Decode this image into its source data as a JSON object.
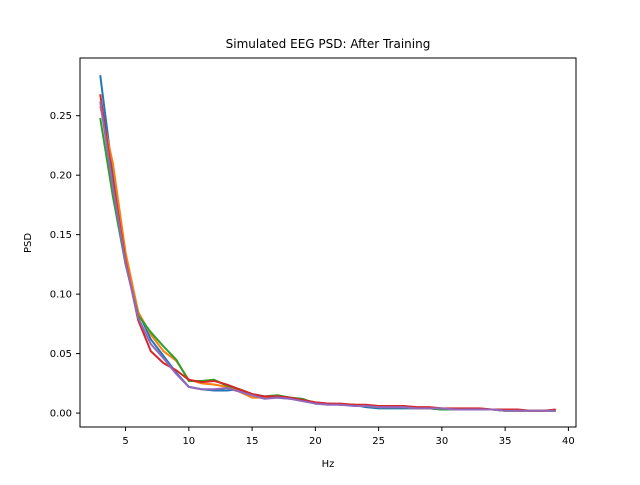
{
  "chart_data": {
    "type": "line",
    "title": "Simulated EEG PSD: After Training",
    "xlabel": "Hz",
    "ylabel": "PSD",
    "xlim": [
      1.4,
      40.6
    ],
    "ylim": [
      -0.0117,
      0.2985
    ],
    "xticks": [
      5,
      10,
      15,
      20,
      25,
      30,
      35,
      40
    ],
    "xtick_labels": [
      "5",
      "10",
      "15",
      "20",
      "25",
      "30",
      "35",
      "40"
    ],
    "yticks": [
      0.0,
      0.05,
      0.1,
      0.15,
      0.2,
      0.25
    ],
    "ytick_labels": [
      "0.00",
      "0.05",
      "0.10",
      "0.15",
      "0.20",
      "0.25"
    ],
    "grid": false,
    "legend": "none",
    "x": [
      3.0,
      4.0,
      5.0,
      6.0,
      7.0,
      8.0,
      9.0,
      10.0,
      11.0,
      12.0,
      13.0,
      14.0,
      15.0,
      16.0,
      17.0,
      18.0,
      19.0,
      20.0,
      21.0,
      22.0,
      23.0,
      24.0,
      25.0,
      26.0,
      27.0,
      28.0,
      29.0,
      30.0,
      31.0,
      32.0,
      33.0,
      34.0,
      35.0,
      36.0,
      37.0,
      38.0,
      39.0
    ],
    "series": [
      {
        "color": "#1f77b4",
        "values": [
          0.284,
          0.2,
          0.13,
          0.085,
          0.062,
          0.048,
          0.034,
          0.022,
          0.02,
          0.019,
          0.019,
          0.02,
          0.016,
          0.013,
          0.013,
          0.012,
          0.011,
          0.009,
          0.008,
          0.007,
          0.007,
          0.005,
          0.004,
          0.004,
          0.004,
          0.004,
          0.004,
          0.003,
          0.003,
          0.003,
          0.003,
          0.003,
          0.002,
          0.002,
          0.002,
          0.002,
          0.002
        ]
      },
      {
        "color": "#ff7f0e",
        "values": [
          0.258,
          0.21,
          0.135,
          0.085,
          0.066,
          0.052,
          0.044,
          0.028,
          0.025,
          0.024,
          0.022,
          0.018,
          0.013,
          0.013,
          0.014,
          0.013,
          0.011,
          0.008,
          0.008,
          0.007,
          0.007,
          0.006,
          0.005,
          0.005,
          0.005,
          0.004,
          0.004,
          0.004,
          0.003,
          0.003,
          0.003,
          0.003,
          0.002,
          0.002,
          0.002,
          0.002,
          0.002
        ]
      },
      {
        "color": "#2ca02c",
        "values": [
          0.248,
          0.182,
          0.125,
          0.082,
          0.068,
          0.056,
          0.045,
          0.027,
          0.027,
          0.028,
          0.023,
          0.02,
          0.016,
          0.014,
          0.015,
          0.013,
          0.012,
          0.008,
          0.008,
          0.007,
          0.007,
          0.006,
          0.005,
          0.005,
          0.005,
          0.004,
          0.004,
          0.003,
          0.003,
          0.003,
          0.003,
          0.003,
          0.002,
          0.002,
          0.002,
          0.002,
          0.002
        ]
      },
      {
        "color": "#d62728",
        "values": [
          0.268,
          0.195,
          0.128,
          0.078,
          0.052,
          0.042,
          0.036,
          0.028,
          0.026,
          0.027,
          0.024,
          0.02,
          0.016,
          0.014,
          0.014,
          0.013,
          0.011,
          0.009,
          0.008,
          0.008,
          0.007,
          0.007,
          0.006,
          0.006,
          0.006,
          0.005,
          0.005,
          0.004,
          0.004,
          0.004,
          0.004,
          0.003,
          0.003,
          0.003,
          0.002,
          0.002,
          0.003
        ]
      },
      {
        "color": "#9467bd",
        "values": [
          0.262,
          0.19,
          0.126,
          0.08,
          0.058,
          0.046,
          0.033,
          0.022,
          0.02,
          0.02,
          0.021,
          0.018,
          0.015,
          0.012,
          0.013,
          0.012,
          0.01,
          0.008,
          0.007,
          0.007,
          0.006,
          0.006,
          0.005,
          0.005,
          0.005,
          0.004,
          0.004,
          0.004,
          0.003,
          0.003,
          0.003,
          0.003,
          0.002,
          0.002,
          0.002,
          0.002,
          0.002
        ]
      }
    ]
  }
}
